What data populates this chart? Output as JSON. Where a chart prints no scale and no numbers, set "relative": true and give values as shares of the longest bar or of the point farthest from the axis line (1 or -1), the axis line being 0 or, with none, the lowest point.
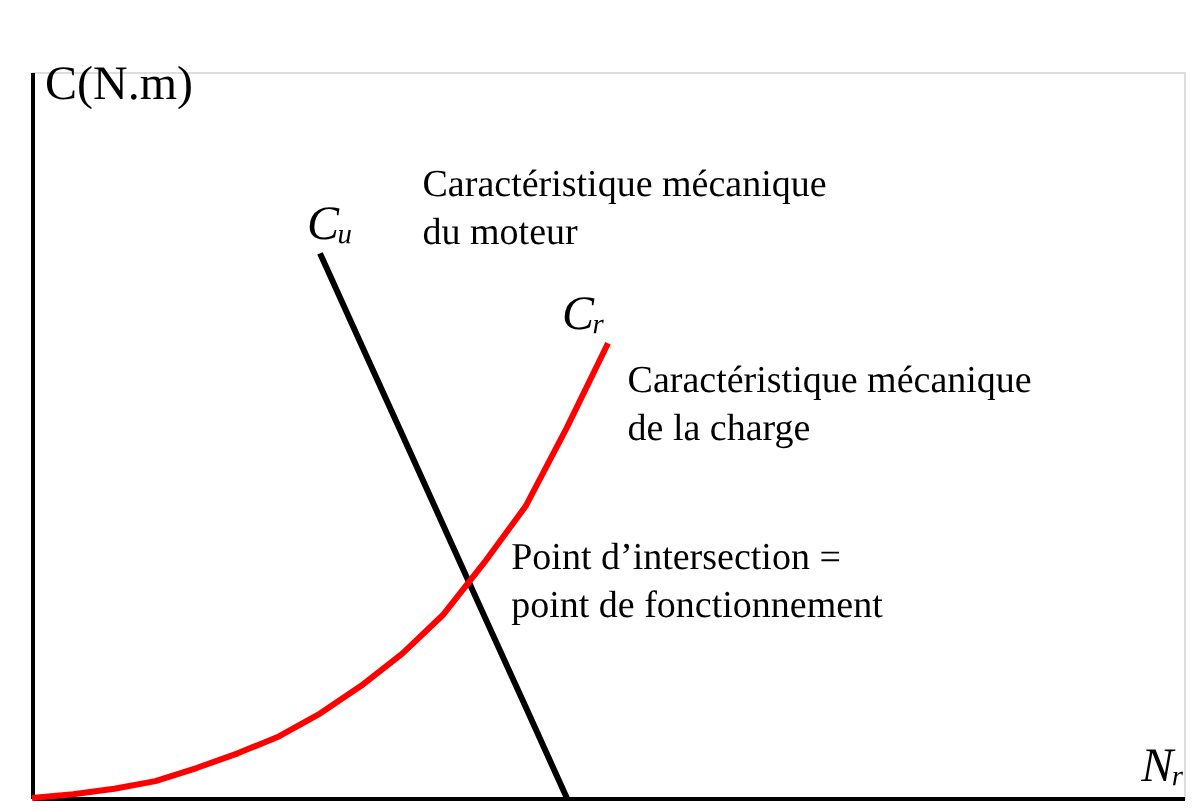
{
  "chart_data": {
    "type": "line",
    "relative": true,
    "xlabel": "Nᵣ",
    "ylabel": "C(N.m)",
    "tick_labels": false,
    "grid": false,
    "marker": "none",
    "line_style": "solid",
    "categories": [
      null,
      null,
      null,
      null,
      null,
      null,
      null,
      null,
      null,
      null,
      null,
      null,
      null,
      null,
      null,
      null,
      null,
      null,
      null,
      null,
      null,
      null,
      null,
      null,
      null,
      null,
      null,
      null,
      null
    ],
    "series": [
      {
        "name": "Cᵤ",
        "color": "#000000",
        "values": [
          null,
          null,
          null,
          null,
          null,
          null,
          null,
          1,
          0.833,
          0.667,
          0.5,
          0.333,
          0.167,
          0,
          null,
          null,
          null,
          null,
          null,
          null,
          null,
          null,
          null,
          null,
          null,
          null,
          null,
          null,
          null
        ]
      },
      {
        "name": "Cᵣ",
        "color": "#ff0000",
        "values": [
          0,
          0.007,
          0.017,
          0.031,
          0.055,
          0.082,
          0.113,
          0.155,
          0.206,
          0.265,
          0.337,
          0.433,
          0.536,
          0.68,
          0.835,
          null,
          null,
          null,
          null,
          null,
          null,
          null,
          null,
          null,
          null,
          null,
          null,
          null,
          null
        ]
      }
    ],
    "annotations": [
      "Caractéristique mécanique\ndu moteur",
      "Caractéristique mécanique\nde la charge",
      "Point d’intersection =\npoint de fonctionnement"
    ]
  }
}
